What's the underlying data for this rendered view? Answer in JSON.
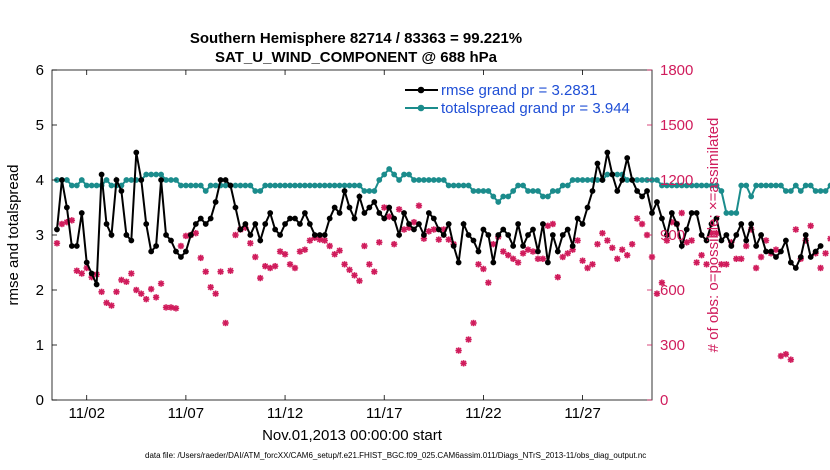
{
  "colors": {
    "rmse": "#000000",
    "spread": "#1b8c8c",
    "obs": "#d01c5c",
    "legend_text": "#1f4fd6",
    "axis": "#000000"
  },
  "chart_data": {
    "type": "line",
    "title_line1": "Southern Hemisphere 82714 / 83363 = 99.221%",
    "title_line2": "SAT_U_WIND_COMPONENT @ 688 hPa",
    "xlabel": "Nov.01,2013 00:00:00 start",
    "ylabel_left": "rmse and totalspread",
    "ylabel_right": "# of obs: o=possible; ×=assimilated",
    "footer": "data file: /Users/raeder/DAI/ATM_forcXX/CAM6_setup/f.e21.FHIST_BGC.f09_025.CAM6assim.011/Diags_NTrS_2013-11/obs_diag_output.nc",
    "x_range": [
      0.25,
      30.5
    ],
    "ylim_left": [
      0,
      6
    ],
    "ylim_right": [
      0,
      1800
    ],
    "x_ticks": [
      {
        "value": 2,
        "label": "11/02"
      },
      {
        "value": 7,
        "label": "11/07"
      },
      {
        "value": 12,
        "label": "11/12"
      },
      {
        "value": 17,
        "label": "11/17"
      },
      {
        "value": 22,
        "label": "11/22"
      },
      {
        "value": 27,
        "label": "11/27"
      }
    ],
    "y_ticks_left": [
      "0",
      "1",
      "2",
      "3",
      "4",
      "5",
      "6"
    ],
    "y_ticks_right": [
      "0",
      "300",
      "600",
      "900",
      "1200",
      "1500",
      "1800"
    ],
    "legend": {
      "position": "top-right",
      "entries": [
        "rmse grand pr = 3.2831",
        "totalspread grand pr = 3.944"
      ]
    },
    "x_start": 0.5,
    "x_step": 0.25,
    "series": [
      {
        "name": "rmse",
        "axis": "left",
        "values": [
          3.1,
          4.0,
          3.5,
          2.8,
          2.8,
          3.4,
          2.5,
          2.3,
          2.1,
          4.1,
          3.2,
          3.0,
          4.0,
          3.8,
          3.0,
          2.9,
          4.5,
          4.0,
          3.2,
          2.7,
          2.8,
          4.0,
          3.0,
          2.9,
          2.7,
          2.6,
          2.7,
          3.0,
          3.2,
          3.3,
          3.2,
          3.3,
          3.6,
          4.0,
          4.0,
          3.9,
          3.5,
          3.1,
          3.2,
          3.0,
          3.2,
          2.9,
          3.2,
          3.4,
          3.1,
          3.0,
          3.2,
          3.3,
          3.3,
          3.2,
          3.4,
          3.2,
          3.0,
          3.0,
          3.0,
          3.3,
          3.5,
          3.4,
          3.8,
          3.5,
          3.3,
          3.7,
          3.4,
          3.5,
          3.6,
          3.4,
          3.3,
          3.5,
          3.3,
          3.0,
          3.4,
          3.2,
          3.1,
          3.2,
          3.0,
          3.4,
          3.3,
          3.1,
          3.0,
          3.2,
          2.8,
          2.5,
          3.2,
          3.0,
          2.9,
          2.7,
          3.1,
          3.0,
          2.5,
          3.0,
          3.1,
          3.0,
          2.8,
          3.2,
          2.8,
          3.0,
          3.1,
          2.7,
          3.2,
          2.5,
          3.0,
          2.7,
          3.0,
          3.1,
          2.8,
          3.3,
          3.2,
          3.5,
          3.8,
          4.3,
          4.0,
          4.5,
          4.1,
          3.8,
          4.0,
          4.4,
          4.0,
          3.8,
          3.7,
          3.8,
          3.4,
          3.6,
          3.3,
          3.0,
          3.4,
          3.2,
          2.8,
          3.1,
          3.4,
          3.4,
          3.0,
          2.9,
          3.2,
          3.3,
          2.9,
          3.0,
          2.8,
          3.0,
          3.2,
          2.9,
          3.2,
          2.8,
          3.0,
          2.7,
          2.7,
          2.6,
          2.7,
          2.9,
          2.5,
          2.4,
          2.6,
          3.0,
          2.6,
          2.7,
          2.8
        ]
      },
      {
        "name": "totalspread",
        "axis": "left",
        "values": [
          4.0,
          4.0,
          4.0,
          3.9,
          3.9,
          4.0,
          3.9,
          3.9,
          3.9,
          3.9,
          4.0,
          3.9,
          3.9,
          3.9,
          4.0,
          4.0,
          4.0,
          4.0,
          4.1,
          4.1,
          4.1,
          4.1,
          4.0,
          4.0,
          4.0,
          3.9,
          3.9,
          3.9,
          3.9,
          3.9,
          3.8,
          3.9,
          3.9,
          3.9,
          3.9,
          3.9,
          3.9,
          3.9,
          3.9,
          3.9,
          3.8,
          3.8,
          3.9,
          3.9,
          3.9,
          3.9,
          3.9,
          3.9,
          3.9,
          3.9,
          3.9,
          3.9,
          3.9,
          3.9,
          3.9,
          3.9,
          3.9,
          3.9,
          3.9,
          3.9,
          3.9,
          3.9,
          3.8,
          3.8,
          3.8,
          4.0,
          4.1,
          4.2,
          4.1,
          4.0,
          4.1,
          4.1,
          4.0,
          4.0,
          4.0,
          4.0,
          4.0,
          4.0,
          4.0,
          3.9,
          3.9,
          3.9,
          3.9,
          3.9,
          3.8,
          3.8,
          3.8,
          3.8,
          3.7,
          3.6,
          3.7,
          3.7,
          3.8,
          3.9,
          3.9,
          3.8,
          3.8,
          3.8,
          3.7,
          3.7,
          3.8,
          3.8,
          3.9,
          3.9,
          4.0,
          4.0,
          4.0,
          4.0,
          4.0,
          4.0,
          4.0,
          4.1,
          4.1,
          4.1,
          4.1,
          4.0,
          4.0,
          4.0,
          4.0,
          4.0,
          4.0,
          4.0,
          3.9,
          3.9,
          3.9,
          3.9,
          3.9,
          3.9,
          3.9,
          3.9,
          3.9,
          3.9,
          3.9,
          3.9,
          3.8,
          3.4,
          3.4,
          3.4,
          3.9,
          3.9,
          3.7,
          3.9,
          3.9,
          3.9,
          3.9,
          3.9,
          3.9,
          3.8,
          3.8,
          3.9,
          3.8,
          3.9,
          3.9,
          3.8,
          3.8,
          3.8,
          3.9
        ]
      },
      {
        "name": "obs possible",
        "axis": "right",
        "values": [
          855,
          960,
          970,
          980,
          705,
          690,
          720,
          670,
          685,
          590,
          530,
          515,
          590,
          655,
          645,
          690,
          600,
          580,
          550,
          605,
          560,
          635,
          505,
          505,
          500,
          840,
          895,
          900,
          910,
          775,
          700,
          615,
          580,
          700,
          420,
          705,
          900,
          930,
          940,
          855,
          780,
          665,
          730,
          720,
          730,
          810,
          795,
          740,
          720,
          810,
          820,
          870,
          885,
          875,
          870,
          840,
          795,
          815,
          740,
          710,
          680,
          650,
          840,
          740,
          700,
          860,
          1050,
          1000,
          850,
          1040,
          930,
          940,
          970,
          1060,
          880,
          920,
          930,
          875,
          930,
          875,
          850,
          270,
          200,
          330,
          420,
          740,
          715,
          640,
          850,
          890,
          810,
          790,
          770,
          750,
          800,
          820,
          810,
          770,
          770,
          950,
          960,
          670,
          780,
          800,
          820,
          870,
          760,
          720,
          740,
          850,
          910,
          870,
          830,
          770,
          820,
          790,
          850,
          990,
          960,
          900,
          780,
          580,
          640,
          870,
          970,
          960,
          1020,
          860,
          870,
          750,
          790,
          740,
          910,
          910,
          740,
          740,
          860,
          770,
          770,
          840,
          930,
          720,
          780,
          870,
          800,
          820,
          240,
          250,
          220,
          930,
          770,
          870,
          950,
          800,
          720,
          800,
          880,
          900,
          0
        ]
      }
    ]
  }
}
